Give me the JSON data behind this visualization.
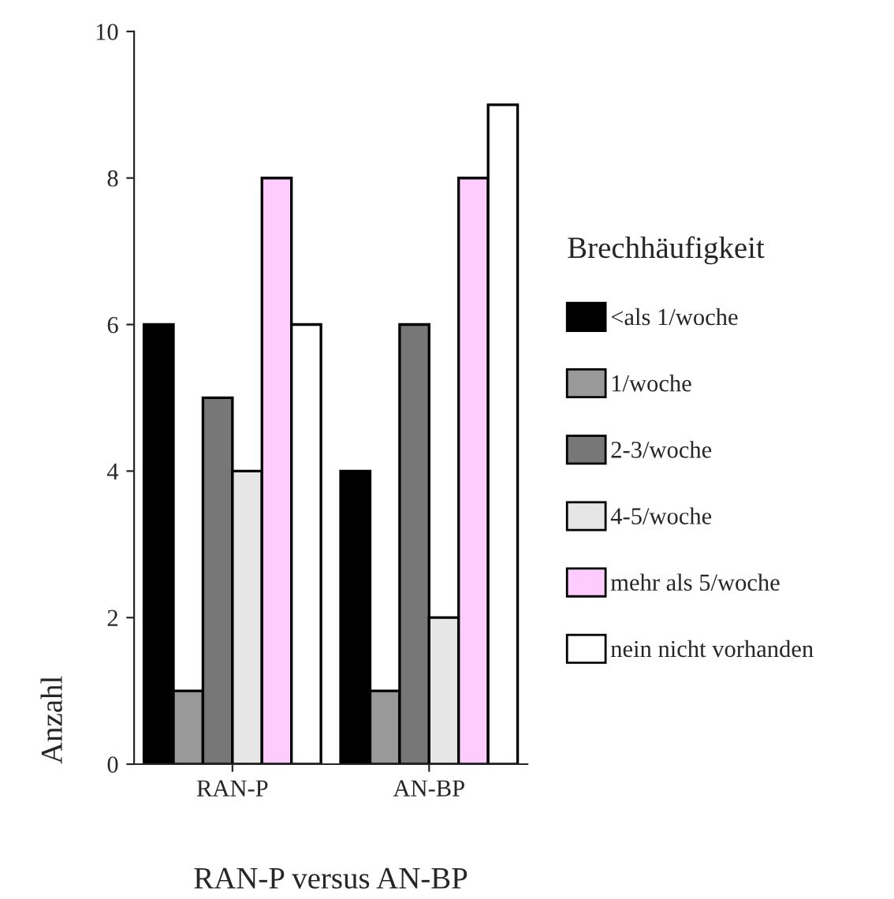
{
  "chart_data": {
    "type": "bar",
    "categories": [
      "RAN-P",
      "AN-BP"
    ],
    "series": [
      {
        "name": "<als 1/woche",
        "color": "#000000",
        "values": [
          6,
          4
        ]
      },
      {
        "name": "1/woche",
        "color": "#999999",
        "values": [
          1,
          1
        ]
      },
      {
        "name": "2-3/woche",
        "color": "#777777",
        "values": [
          5,
          6
        ]
      },
      {
        "name": "4-5/woche",
        "color": "#e6e6e6",
        "values": [
          4,
          2
        ]
      },
      {
        "name": "mehr als 5/woche",
        "color": "#ffccff",
        "values": [
          8,
          8
        ]
      },
      {
        "name": "nein nicht vorhanden",
        "color": "#ffffff",
        "values": [
          6,
          9
        ]
      }
    ],
    "xlabel": "RAN-P versus AN-BP",
    "ylabel": "Anzahl",
    "legend_title": "Brechhäufigkeit",
    "ylim": [
      0,
      10
    ],
    "yticks": [
      0,
      2,
      4,
      6,
      8,
      10
    ],
    "grid": false,
    "legend": "right"
  }
}
